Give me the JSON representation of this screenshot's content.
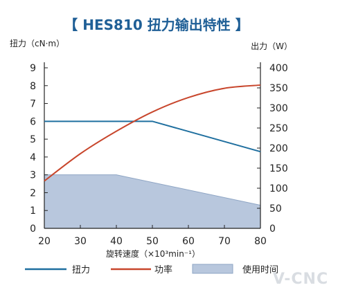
{
  "chart_data": {
    "type": "line",
    "title": "【 HES810 扭力输出特性 】",
    "x": [
      20,
      30,
      40,
      50,
      60,
      70,
      80
    ],
    "xlabel": "旋转速度（×10³min⁻¹）",
    "y_left_label": "扭力（cN·m）",
    "y_right_label": "出力（W）",
    "xlim": [
      20,
      80
    ],
    "y_left_lim": [
      0,
      9
    ],
    "y_right_lim": [
      0,
      400
    ],
    "x_ticks": [
      "20",
      "30",
      "40",
      "50",
      "60",
      "70",
      "80"
    ],
    "y_left_ticks": [
      "0",
      "1",
      "2",
      "3",
      "4",
      "5",
      "6",
      "7",
      "8",
      "9"
    ],
    "y_right_ticks": [
      "0",
      "50",
      "100",
      "150",
      "200",
      "250",
      "300",
      "350",
      "400"
    ],
    "series": [
      {
        "name": "扭力",
        "axis": "left",
        "color": "#1f6f9f",
        "kind": "line",
        "points": [
          [
            20,
            6.0
          ],
          [
            50,
            6.0
          ],
          [
            80,
            4.3
          ]
        ]
      },
      {
        "name": "功率",
        "axis": "right",
        "color": "#c8462c",
        "kind": "line",
        "points": [
          [
            20,
            118
          ],
          [
            30,
            186
          ],
          [
            40,
            242
          ],
          [
            50,
            290
          ],
          [
            60,
            326
          ],
          [
            70,
            349
          ],
          [
            80,
            357
          ]
        ]
      },
      {
        "name": "使用时间",
        "axis": "left",
        "color": "#b8c7dd",
        "kind": "area",
        "points": [
          [
            20,
            3.0
          ],
          [
            40,
            3.0
          ],
          [
            80,
            1.3
          ]
        ]
      }
    ],
    "grid": false,
    "legend_placement": "bottom"
  },
  "watermark": "V-CNC"
}
